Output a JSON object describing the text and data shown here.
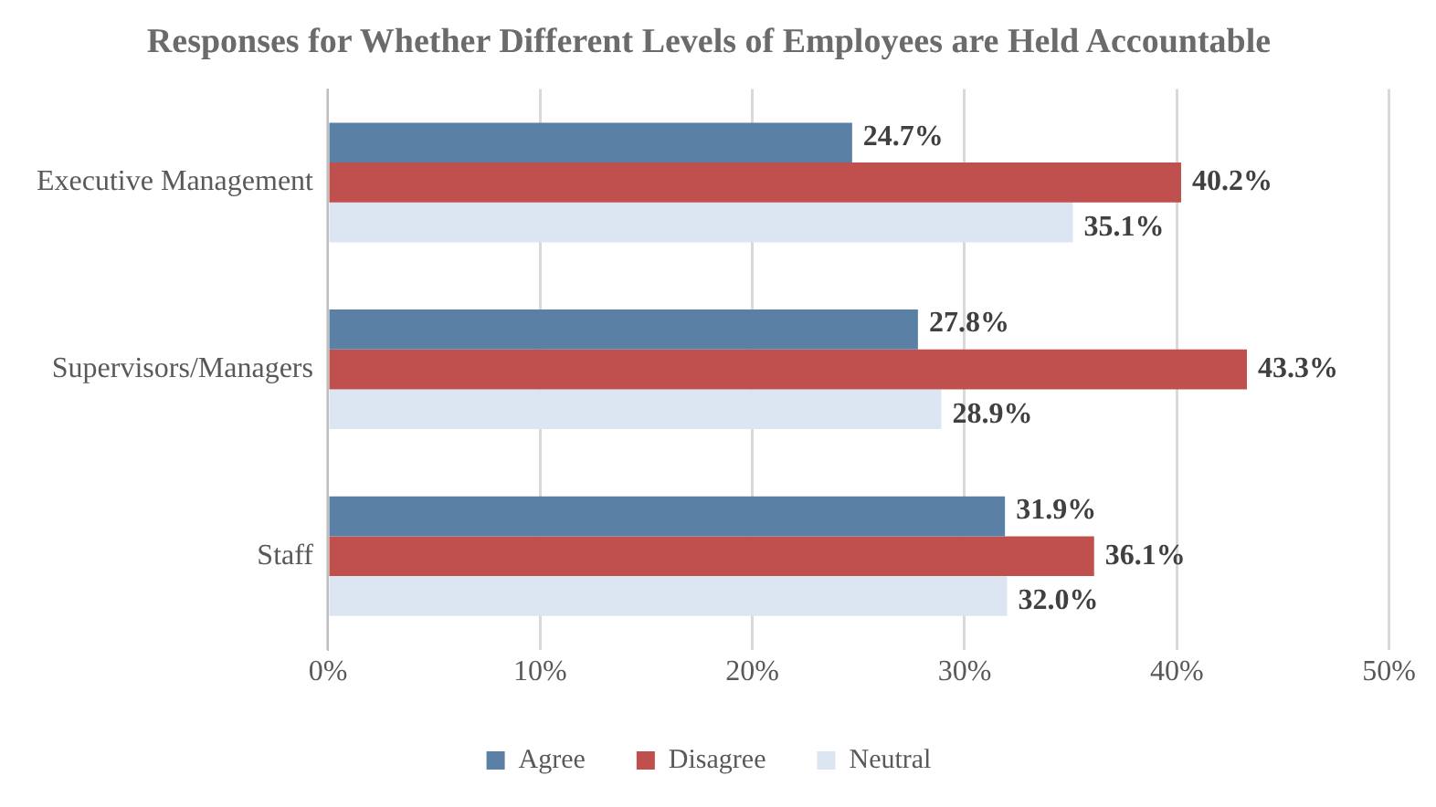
{
  "chart_data": {
    "type": "bar",
    "orientation": "horizontal",
    "title": "Responses for Whether Different Levels of Employees are Held Accountable",
    "categories": [
      "Executive Management",
      "Supervisors/Managers",
      "Staff"
    ],
    "series": [
      {
        "name": "Agree",
        "color": "#5b80a5",
        "values": [
          24.7,
          27.8,
          31.9
        ],
        "value_labels": [
          "24.7%",
          "27.8%",
          "31.9%"
        ]
      },
      {
        "name": "Disagree",
        "color": "#c0504d",
        "values": [
          40.2,
          43.3,
          36.1
        ],
        "value_labels": [
          "40.2%",
          "43.3%",
          "36.1%"
        ]
      },
      {
        "name": "Neutral",
        "color": "#dce6f2",
        "values": [
          35.1,
          28.9,
          32.0
        ],
        "value_labels": [
          "35.1%",
          "28.9%",
          "32.0%"
        ]
      }
    ],
    "xlim": [
      0,
      50
    ],
    "xticks": [
      {
        "value": 0,
        "label": "0%"
      },
      {
        "value": 10,
        "label": "10%"
      },
      {
        "value": 20,
        "label": "20%"
      },
      {
        "value": 30,
        "label": "30%"
      },
      {
        "value": 40,
        "label": "40%"
      },
      {
        "value": 50,
        "label": "50%"
      }
    ],
    "grid": "x",
    "legend": "bottom"
  }
}
